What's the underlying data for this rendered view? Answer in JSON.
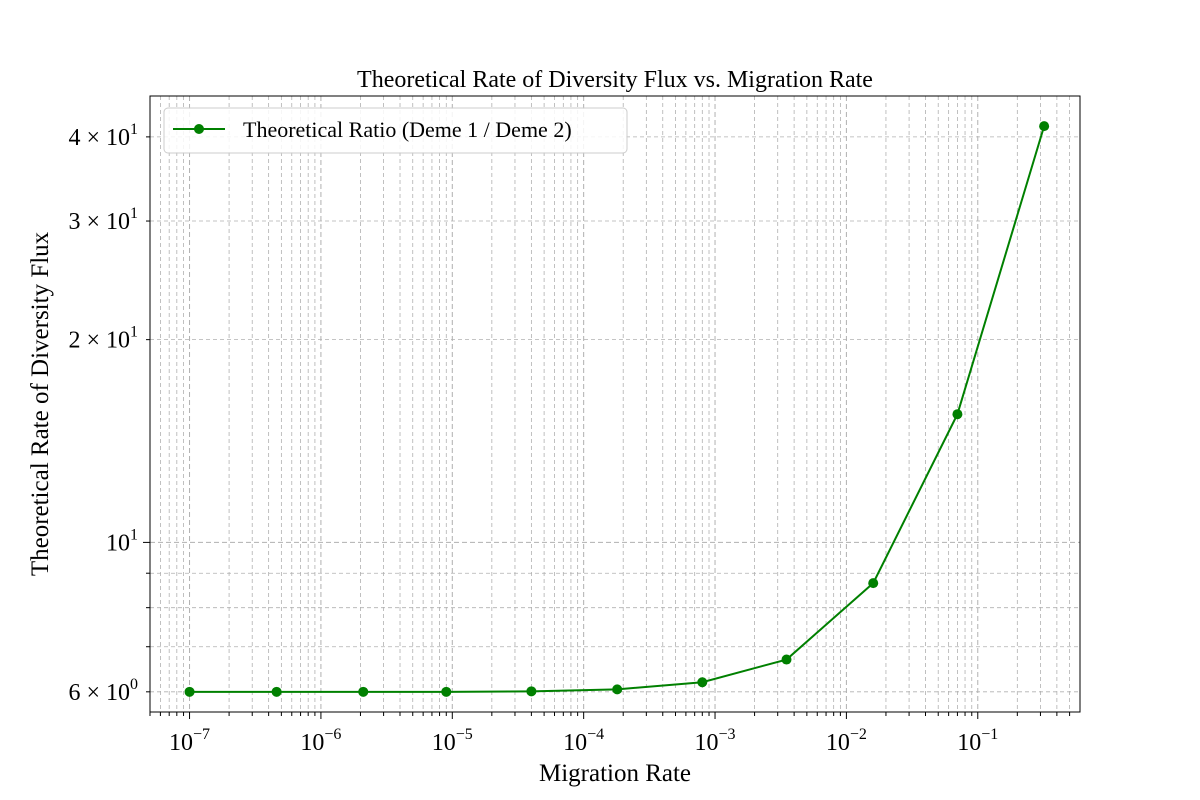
{
  "chart_data": {
    "type": "line",
    "title": "Theoretical Rate of Diversity Flux vs. Migration Rate",
    "xlabel": "Migration Rate",
    "ylabel": "Theoretical Rate of Diversity Flux",
    "xscale": "log",
    "yscale": "log",
    "xlim": [
      5e-08,
      0.6
    ],
    "ylim": [
      5.6,
      46
    ],
    "grid": true,
    "legend_position": "top-left",
    "x_ticks": [
      {
        "value": 1e-07,
        "base": "10",
        "exp": "−7"
      },
      {
        "value": 1e-06,
        "base": "10",
        "exp": "−6"
      },
      {
        "value": 1e-05,
        "base": "10",
        "exp": "−5"
      },
      {
        "value": 0.0001,
        "base": "10",
        "exp": "−4"
      },
      {
        "value": 0.001,
        "base": "10",
        "exp": "−3"
      },
      {
        "value": 0.01,
        "base": "10",
        "exp": "−2"
      },
      {
        "value": 0.1,
        "base": "10",
        "exp": "−1"
      }
    ],
    "y_ticks": [
      {
        "value": 6,
        "base": "6 × 10",
        "exp": "0"
      },
      {
        "value": 10,
        "base": "10",
        "exp": "1"
      },
      {
        "value": 20,
        "base": "2 × 10",
        "exp": "1"
      },
      {
        "value": 30,
        "base": "3 × 10",
        "exp": "1"
      },
      {
        "value": 40,
        "base": "4 × 10",
        "exp": "1"
      }
    ],
    "series": [
      {
        "name": "Theoretical Ratio (Deme 1 / Deme 2)",
        "color": "#008000",
        "marker": "circle",
        "x": [
          1e-07,
          4.6e-07,
          2.1e-06,
          9e-06,
          4e-05,
          0.00018,
          0.0008,
          0.0035,
          0.016,
          0.07,
          0.32
        ],
        "y": [
          6.0,
          6.0,
          6.0,
          6.0,
          6.01,
          6.05,
          6.2,
          6.7,
          8.7,
          15.5,
          41.5
        ]
      }
    ]
  }
}
